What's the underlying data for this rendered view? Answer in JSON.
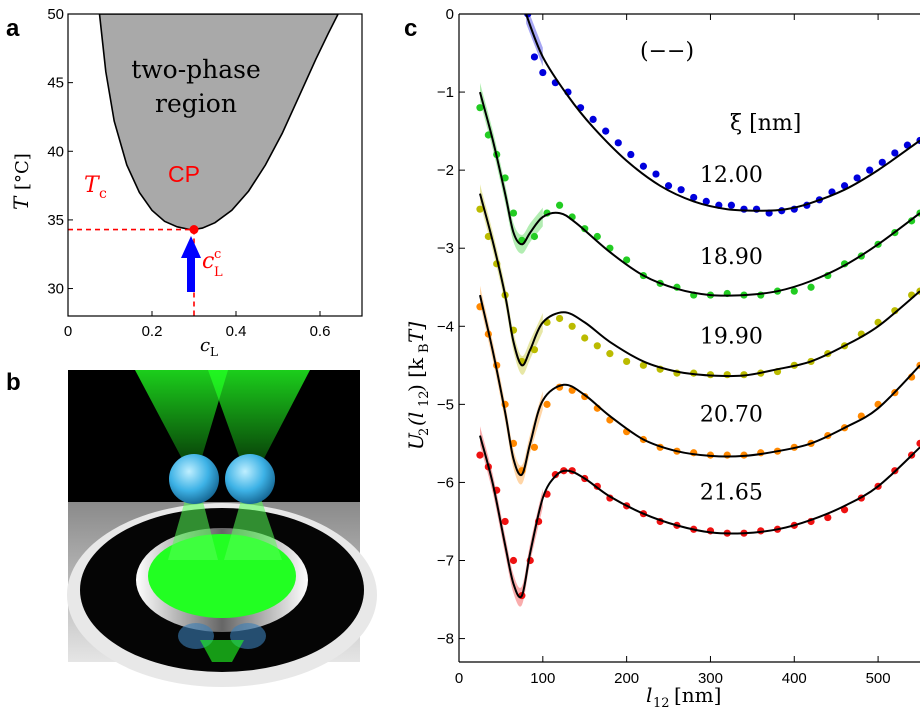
{
  "panel_labels": {
    "a": "a",
    "b": "b",
    "c": "c"
  },
  "panel_a": {
    "region_label_1": "two-phase",
    "region_label_2": "region",
    "cp_label": "CP",
    "tc_label": "T",
    "tc_sub": "c",
    "clc_label": "c",
    "clc_sub": "L",
    "clc_sup": "c",
    "ylabel_var": "T",
    "ylabel_unit": "[°C]",
    "xlabel_var": "c",
    "xlabel_sub": "L",
    "x_ticks": [
      "0",
      "0.2",
      "0.4",
      "0.6"
    ],
    "y_ticks": [
      "30",
      "35",
      "40",
      "45",
      "50"
    ]
  },
  "panel_b": {
    "particle_1": "1",
    "particle_2": "2"
  },
  "panel_c": {
    "boundary_label": "(−−)",
    "xi_label": "ξ [nm]",
    "ylabel_main": "U",
    "ylabel_sub": "2",
    "ylabel_arg": "(l",
    "ylabel_arg_sub": "12",
    "ylabel_unit": ") [k",
    "ylabel_unit_sub": "B",
    "ylabel_unit_end": "T]",
    "xlabel_var": "l",
    "xlabel_sub": "12",
    "xlabel_unit": "[nm]",
    "x_ticks": [
      "0",
      "100",
      "200",
      "300",
      "400",
      "500"
    ],
    "y_ticks": [
      "0",
      "−1",
      "−2",
      "−3",
      "−4",
      "−5",
      "−6",
      "−7",
      "−8"
    ]
  },
  "chart_data": [
    {
      "type": "line",
      "panel": "a",
      "title": "",
      "xlabel": "c_L",
      "ylabel": "T [°C]",
      "xlim": [
        0,
        0.7
      ],
      "ylim": [
        28,
        50
      ],
      "colors": {
        "fill": "#a9a9a9",
        "critical": "#ff0000",
        "arrow": "#0000ff"
      },
      "series": [
        {
          "name": "coexistence",
          "x": [
            0.075,
            0.09,
            0.11,
            0.14,
            0.17,
            0.2,
            0.23,
            0.26,
            0.29,
            0.3,
            0.32,
            0.35,
            0.39,
            0.43,
            0.47,
            0.51,
            0.55,
            0.59,
            0.62,
            0.643
          ],
          "y": [
            50,
            45.8,
            42.2,
            39.0,
            37.0,
            35.7,
            34.9,
            34.5,
            34.3,
            34.3,
            34.4,
            34.8,
            35.7,
            37.1,
            39.0,
            41.3,
            44.0,
            46.7,
            48.6,
            50
          ]
        }
      ],
      "critical_point": {
        "x": 0.3,
        "y": 34.3
      }
    },
    {
      "type": "scatter",
      "panel": "c",
      "title": "",
      "xlabel": "l12 [nm]",
      "ylabel": "U2(l12) [kBT]",
      "xlim": [
        0,
        550
      ],
      "ylim": [
        -8.3,
        0
      ],
      "series": [
        {
          "name": "12.00",
          "color": "#0000dd",
          "fit_color": "#000000",
          "x": [
            82,
            90,
            100,
            115,
            130,
            145,
            160,
            175,
            190,
            205,
            220,
            235,
            250,
            265,
            280,
            295,
            310,
            325,
            340,
            355,
            370,
            385,
            400,
            415,
            430,
            445,
            460,
            475,
            490,
            505,
            520,
            535,
            550
          ],
          "y": [
            0,
            -0.55,
            -0.75,
            -0.88,
            -1.0,
            -1.2,
            -1.35,
            -1.5,
            -1.65,
            -1.8,
            -1.95,
            -2.05,
            -2.2,
            -2.25,
            -2.35,
            -2.4,
            -2.45,
            -2.45,
            -2.5,
            -2.5,
            -2.55,
            -2.52,
            -2.5,
            -2.45,
            -2.38,
            -2.28,
            -2.2,
            -2.1,
            -2.0,
            -1.9,
            -1.78,
            -1.68,
            -1.62
          ],
          "fit_x": [
            80,
            100,
            130,
            160,
            200,
            240,
            280,
            320,
            360,
            390,
            420,
            460,
            500,
            550
          ],
          "fit_y": [
            0,
            -0.55,
            -1.05,
            -1.45,
            -1.88,
            -2.2,
            -2.4,
            -2.5,
            -2.52,
            -2.5,
            -2.42,
            -2.25,
            -2.0,
            -1.62
          ]
        },
        {
          "name": "18.90",
          "color": "#22cc22",
          "fit_color": "#000000",
          "x": [
            25,
            35,
            45,
            55,
            65,
            75,
            90,
            105,
            120,
            135,
            150,
            165,
            180,
            200,
            220,
            240,
            260,
            280,
            300,
            320,
            340,
            360,
            380,
            400,
            420,
            440,
            460,
            480,
            500,
            520,
            540,
            550
          ],
          "y": [
            -1.2,
            -1.55,
            -1.8,
            -2.1,
            -2.55,
            -2.9,
            -2.85,
            -2.55,
            -2.45,
            -2.6,
            -2.75,
            -2.85,
            -3.0,
            -3.15,
            -3.35,
            -3.45,
            -3.5,
            -3.6,
            -3.6,
            -3.58,
            -3.6,
            -3.6,
            -3.55,
            -3.55,
            -3.5,
            -3.35,
            -3.2,
            -3.1,
            -2.95,
            -2.8,
            -2.65,
            -2.55
          ],
          "fit_x": [
            25,
            40,
            55,
            65,
            75,
            85,
            100,
            120,
            140,
            180,
            220,
            260,
            300,
            340,
            380,
            420,
            460,
            500,
            550
          ],
          "fit_y": [
            -1.0,
            -1.6,
            -2.3,
            -2.8,
            -2.95,
            -2.8,
            -2.6,
            -2.55,
            -2.68,
            -3.05,
            -3.35,
            -3.52,
            -3.6,
            -3.6,
            -3.55,
            -3.42,
            -3.22,
            -2.95,
            -2.55
          ]
        },
        {
          "name": "19.90",
          "color": "#bbbb00",
          "fit_color": "#000000",
          "x": [
            25,
            35,
            45,
            55,
            65,
            75,
            90,
            105,
            120,
            135,
            150,
            165,
            180,
            200,
            220,
            240,
            260,
            280,
            300,
            320,
            340,
            360,
            380,
            400,
            420,
            440,
            460,
            480,
            500,
            520,
            540,
            550
          ],
          "y": [
            -2.5,
            -2.85,
            -3.2,
            -3.6,
            -4.05,
            -4.45,
            -4.3,
            -3.95,
            -3.9,
            -4.0,
            -4.15,
            -4.25,
            -4.35,
            -4.45,
            -4.5,
            -4.55,
            -4.6,
            -4.6,
            -4.62,
            -4.62,
            -4.62,
            -4.6,
            -4.58,
            -4.5,
            -4.45,
            -4.35,
            -4.25,
            -4.1,
            -3.95,
            -3.8,
            -3.6,
            -3.55
          ],
          "fit_x": [
            25,
            40,
            55,
            65,
            75,
            85,
            100,
            125,
            150,
            180,
            220,
            260,
            300,
            340,
            380,
            420,
            460,
            500,
            550
          ],
          "fit_y": [
            -2.3,
            -2.9,
            -3.6,
            -4.2,
            -4.5,
            -4.3,
            -3.95,
            -3.82,
            -3.95,
            -4.2,
            -4.45,
            -4.58,
            -4.63,
            -4.63,
            -4.55,
            -4.45,
            -4.25,
            -4.0,
            -3.55
          ]
        },
        {
          "name": "20.70",
          "color": "#ff8800",
          "fit_color": "#000000",
          "x": [
            25,
            35,
            45,
            55,
            65,
            75,
            90,
            105,
            120,
            135,
            150,
            165,
            180,
            200,
            220,
            240,
            260,
            280,
            300,
            320,
            340,
            360,
            380,
            400,
            420,
            440,
            460,
            480,
            500,
            520,
            540,
            550
          ],
          "y": [
            -3.75,
            -4.1,
            -4.5,
            -5.0,
            -5.5,
            -5.85,
            -5.55,
            -5.0,
            -4.78,
            -4.82,
            -4.9,
            -5.05,
            -5.2,
            -5.35,
            -5.45,
            -5.55,
            -5.6,
            -5.62,
            -5.65,
            -5.65,
            -5.65,
            -5.62,
            -5.6,
            -5.55,
            -5.5,
            -5.4,
            -5.3,
            -5.15,
            -5.0,
            -4.85,
            -4.65,
            -4.5
          ],
          "fit_x": [
            25,
            40,
            55,
            65,
            75,
            85,
            100,
            125,
            150,
            180,
            220,
            260,
            300,
            340,
            380,
            420,
            460,
            500,
            550
          ],
          "fit_y": [
            -3.6,
            -4.3,
            -5.1,
            -5.7,
            -5.9,
            -5.5,
            -4.95,
            -4.75,
            -4.88,
            -5.15,
            -5.45,
            -5.6,
            -5.66,
            -5.66,
            -5.6,
            -5.5,
            -5.3,
            -5.05,
            -4.5
          ]
        },
        {
          "name": "21.65",
          "color": "#ee1111",
          "fit_color": "#000000",
          "x": [
            25,
            35,
            45,
            55,
            65,
            75,
            85,
            95,
            105,
            115,
            125,
            135,
            150,
            165,
            180,
            200,
            220,
            240,
            260,
            280,
            300,
            320,
            340,
            360,
            380,
            400,
            420,
            440,
            460,
            480,
            500,
            520,
            540,
            550
          ],
          "y": [
            -5.65,
            -5.8,
            -6.1,
            -6.5,
            -7.0,
            -7.45,
            -7.0,
            -6.5,
            -6.15,
            -5.9,
            -5.85,
            -5.85,
            -5.95,
            -6.05,
            -6.2,
            -6.3,
            -6.4,
            -6.5,
            -6.55,
            -6.6,
            -6.62,
            -6.65,
            -6.65,
            -6.62,
            -6.6,
            -6.55,
            -6.5,
            -6.45,
            -6.35,
            -6.2,
            -6.05,
            -5.85,
            -5.65,
            -5.5
          ],
          "fit_x": [
            25,
            40,
            55,
            65,
            75,
            85,
            100,
            115,
            130,
            150,
            180,
            220,
            260,
            300,
            340,
            380,
            420,
            460,
            500,
            550
          ],
          "fit_y": [
            -5.4,
            -6.0,
            -6.8,
            -7.3,
            -7.45,
            -6.9,
            -6.2,
            -5.92,
            -5.85,
            -5.95,
            -6.18,
            -6.4,
            -6.55,
            -6.64,
            -6.65,
            -6.6,
            -6.48,
            -6.3,
            -6.05,
            -5.55
          ]
        }
      ]
    }
  ]
}
